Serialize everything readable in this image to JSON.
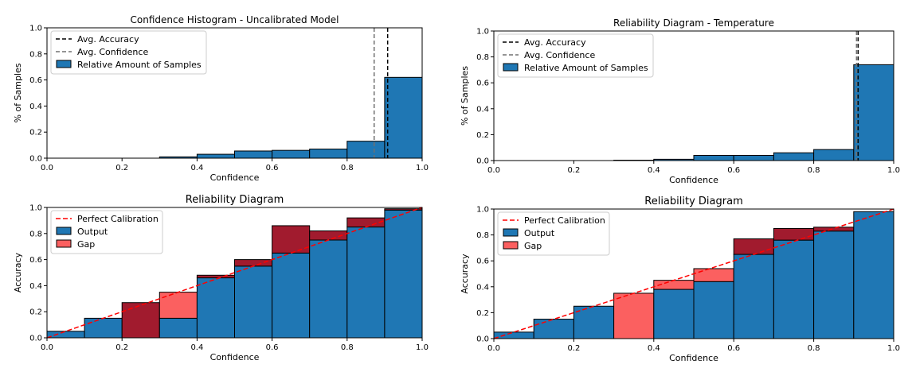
{
  "colors": {
    "output": "#1f77b4",
    "gap_under": "#fb6060",
    "gap_over": "#a11b2e",
    "avg_accuracy": "#000000",
    "avg_confidence": "#707070",
    "perfect": "#ff0000"
  },
  "chart_data": [
    {
      "id": "hist_uncal",
      "type": "bar",
      "title": "Confidence Histogram - Uncalibrated Model",
      "xlabel": "Confidence",
      "ylabel": "% of Samples",
      "xlim": [
        0,
        1
      ],
      "ylim": [
        0,
        1
      ],
      "xticks": [
        "0.0",
        "0.2",
        "0.4",
        "0.6",
        "0.8",
        "1.0"
      ],
      "yticks": [
        "0.0",
        "0.2",
        "0.4",
        "0.6",
        "0.8",
        "1.0"
      ],
      "bin_edges": [
        0,
        0.1,
        0.2,
        0.3,
        0.4,
        0.5,
        0.6,
        0.7,
        0.8,
        0.9,
        1.0
      ],
      "values": [
        0,
        0,
        0,
        0.01,
        0.03,
        0.055,
        0.06,
        0.07,
        0.13,
        0.62
      ],
      "avg_accuracy": 0.908,
      "avg_confidence": 0.872,
      "legend": [
        "Avg. Accuracy",
        "Avg. Confidence",
        "Relative Amount of Samples"
      ],
      "legend_position": "upper-left"
    },
    {
      "id": "hist_temp",
      "type": "bar",
      "title": "Reliability Diagram - Temperature",
      "xlabel": "Confidence",
      "ylabel": "% of Samples",
      "xlim": [
        0,
        1
      ],
      "ylim": [
        0,
        1
      ],
      "xticks": [
        "0.0",
        "0.2",
        "0.4",
        "0.6",
        "0.8",
        "1.0"
      ],
      "yticks": [
        "0.0",
        "0.2",
        "0.4",
        "0.6",
        "0.8",
        "1.0"
      ],
      "bin_edges": [
        0,
        0.1,
        0.2,
        0.3,
        0.4,
        0.5,
        0.6,
        0.7,
        0.8,
        0.9,
        1.0
      ],
      "values": [
        0,
        0,
        0,
        0.003,
        0.01,
        0.04,
        0.04,
        0.06,
        0.085,
        0.74
      ],
      "avg_accuracy": 0.911,
      "avg_confidence": 0.907,
      "legend": [
        "Avg. Accuracy",
        "Avg. Confidence",
        "Relative Amount of Samples"
      ],
      "legend_position": "upper-left"
    },
    {
      "id": "rel_uncal",
      "type": "bar",
      "title": "Reliability Diagram",
      "xlabel": "Confidence",
      "ylabel": "Accuracy",
      "xlim": [
        0,
        1
      ],
      "ylim": [
        0,
        1
      ],
      "xticks": [
        "0.0",
        "0.2",
        "0.4",
        "0.6",
        "0.8",
        "1.0"
      ],
      "yticks": [
        "0.0",
        "0.2",
        "0.4",
        "0.6",
        "0.8",
        "1.0"
      ],
      "bin_edges": [
        0,
        0.1,
        0.2,
        0.3,
        0.4,
        0.5,
        0.6,
        0.7,
        0.8,
        0.9,
        1.0
      ],
      "output": [
        0.05,
        0.15,
        0,
        0.15,
        0.46,
        0.55,
        0.65,
        0.75,
        0.85,
        0.98
      ],
      "gap_top": [
        0.05,
        0.15,
        0.27,
        0.35,
        0.48,
        0.6,
        0.86,
        0.82,
        0.92,
        0.99
      ],
      "legend": [
        "Perfect Calibration",
        "Output",
        "Gap"
      ],
      "legend_position": "upper-left"
    },
    {
      "id": "rel_temp",
      "type": "bar",
      "title": "Reliability Diagram",
      "xlabel": "Confidence",
      "ylabel": "Accuracy",
      "xlim": [
        0,
        1
      ],
      "ylim": [
        0,
        1
      ],
      "xticks": [
        "0.0",
        "0.2",
        "0.4",
        "0.6",
        "0.8",
        "1.0"
      ],
      "yticks": [
        "0.0",
        "0.2",
        "0.4",
        "0.6",
        "0.8",
        "1.0"
      ],
      "bin_edges": [
        0,
        0.1,
        0.2,
        0.3,
        0.4,
        0.5,
        0.6,
        0.7,
        0.8,
        0.9,
        1.0
      ],
      "output": [
        0.05,
        0.15,
        0.25,
        0,
        0.38,
        0.44,
        0.65,
        0.76,
        0.83,
        0.98
      ],
      "gap_top": [
        0.05,
        0.15,
        0.25,
        0.35,
        0.45,
        0.54,
        0.77,
        0.85,
        0.86,
        0.98
      ],
      "legend": [
        "Perfect Calibration",
        "Output",
        "Gap"
      ],
      "legend_position": "upper-left"
    }
  ]
}
